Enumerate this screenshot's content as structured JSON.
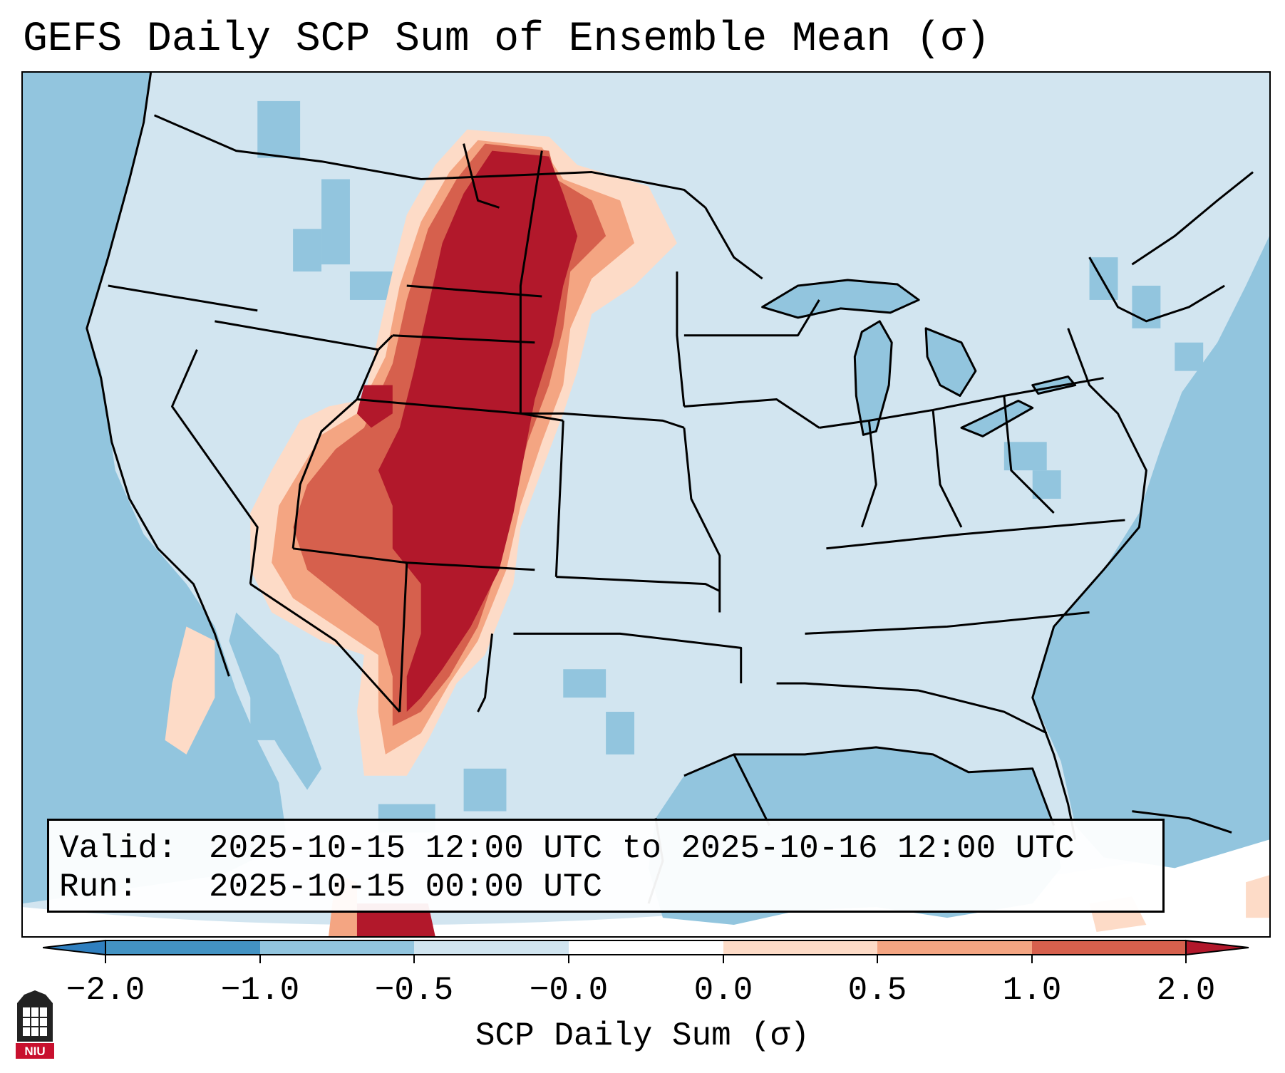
{
  "title": "GEFS Daily SCP Sum of Ensemble Mean (σ)",
  "info": {
    "valid_label": "Valid:",
    "valid_value": "2025-10-15 12:00 UTC to 2025-10-16 12:00 UTC",
    "run_label": "Run:",
    "run_value": "2025-10-15 00:00 UTC"
  },
  "colorbar": {
    "label": "SCP Daily Sum (σ)",
    "ticks": [
      "−2.0",
      "−1.0",
      "−0.5",
      "−0.0",
      "0.0",
      "0.5",
      "1.0",
      "2.0"
    ],
    "colors": {
      "under": "#2f7fbf",
      "bins": [
        "#4393c3",
        "#92c5de",
        "#d1e5f0",
        "#fddbc7",
        "#f4a582",
        "#d6604d"
      ],
      "over": "#b2182b"
    }
  },
  "map": {
    "background": "#d1e5f0",
    "ocean": "#92c5de",
    "outside_projection": "#ffffff",
    "high_value": "#b2182b",
    "mid_value": "#d6604d",
    "low_value": "#fddbc7"
  },
  "logo": {
    "name": "niu-logo",
    "text": "NIU",
    "color": "#c8102e"
  }
}
